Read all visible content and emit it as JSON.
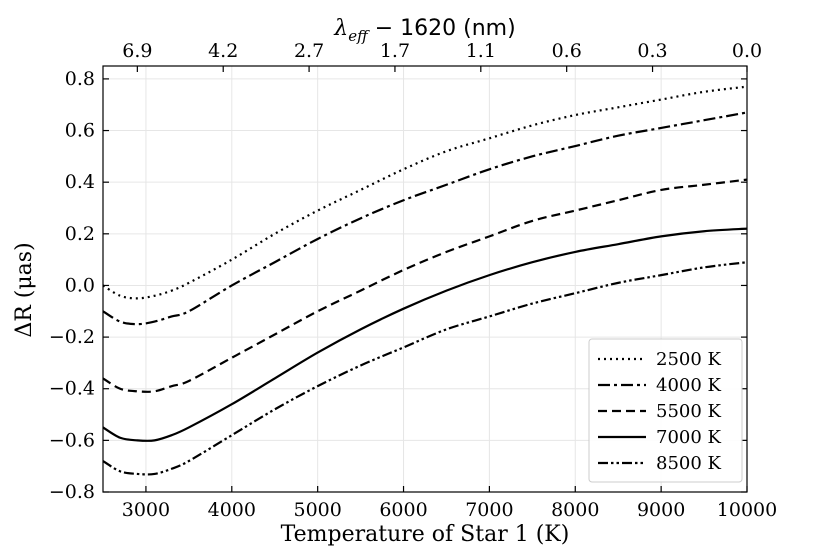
{
  "chart_data": {
    "type": "line",
    "title": "",
    "xlabel": "Temperature of Star 1 (K)",
    "ylabel": "ΔR (μas)",
    "top_xlabel": "λ_eff − 1620 (nm)",
    "top_xlabel_parts": {
      "lambda": "λ",
      "subscript": "eff",
      "rest": " − 1620 (nm)"
    },
    "xlim": [
      2500,
      10000
    ],
    "ylim": [
      -0.8,
      0.85
    ],
    "grid": true,
    "legend_position": "lower-right",
    "x_ticks": [
      3000,
      4000,
      5000,
      6000,
      7000,
      8000,
      9000,
      10000
    ],
    "x_tick_labels": [
      "3000",
      "4000",
      "5000",
      "6000",
      "7000",
      "8000",
      "9000",
      "10000"
    ],
    "y_ticks": [
      -0.8,
      -0.6,
      -0.4,
      -0.2,
      0.0,
      0.2,
      0.4,
      0.6,
      0.8
    ],
    "y_tick_labels": [
      "−0.8",
      "−0.6",
      "−0.4",
      "−0.2",
      "0.0",
      "0.2",
      "0.4",
      "0.6",
      "0.8"
    ],
    "top_ticks": [
      {
        "x": 2900,
        "label": "6.9"
      },
      {
        "x": 3900,
        "label": "4.2"
      },
      {
        "x": 4900,
        "label": "2.7"
      },
      {
        "x": 5900,
        "label": "1.7"
      },
      {
        "x": 6900,
        "label": "1.1"
      },
      {
        "x": 7900,
        "label": "0.6"
      },
      {
        "x": 8900,
        "label": "0.3"
      },
      {
        "x": 10000,
        "label": "0.0"
      }
    ],
    "x": [
      2500,
      2700,
      2900,
      3100,
      3300,
      3500,
      4000,
      4500,
      5000,
      5500,
      6000,
      6500,
      7000,
      7500,
      8000,
      8500,
      9000,
      9500,
      10000
    ],
    "series": [
      {
        "name": "2500 K",
        "style": "dotted",
        "values": [
          0.0,
          -0.04,
          -0.05,
          -0.04,
          -0.02,
          0.01,
          0.1,
          0.2,
          0.29,
          0.37,
          0.45,
          0.52,
          0.57,
          0.62,
          0.66,
          0.69,
          0.72,
          0.75,
          0.77
        ]
      },
      {
        "name": "4000 K",
        "style": "dashdot",
        "values": [
          -0.1,
          -0.14,
          -0.15,
          -0.14,
          -0.12,
          -0.1,
          0.0,
          0.09,
          0.18,
          0.26,
          0.33,
          0.39,
          0.45,
          0.5,
          0.54,
          0.58,
          0.61,
          0.64,
          0.67
        ]
      },
      {
        "name": "5500 K",
        "style": "dashed",
        "values": [
          -0.36,
          -0.4,
          -0.41,
          -0.41,
          -0.39,
          -0.37,
          -0.28,
          -0.19,
          -0.1,
          -0.02,
          0.06,
          0.13,
          0.19,
          0.25,
          0.29,
          0.33,
          0.37,
          0.39,
          0.41
        ]
      },
      {
        "name": "7000 K",
        "style": "solid",
        "values": [
          -0.55,
          -0.59,
          -0.6,
          -0.6,
          -0.58,
          -0.55,
          -0.46,
          -0.36,
          -0.26,
          -0.17,
          -0.09,
          -0.02,
          0.04,
          0.09,
          0.13,
          0.16,
          0.19,
          0.21,
          0.22
        ]
      },
      {
        "name": "8500 K",
        "style": "dashdotdot",
        "values": [
          -0.68,
          -0.72,
          -0.73,
          -0.73,
          -0.71,
          -0.68,
          -0.58,
          -0.48,
          -0.39,
          -0.31,
          -0.24,
          -0.17,
          -0.12,
          -0.07,
          -0.03,
          0.01,
          0.04,
          0.07,
          0.09
        ]
      }
    ]
  }
}
